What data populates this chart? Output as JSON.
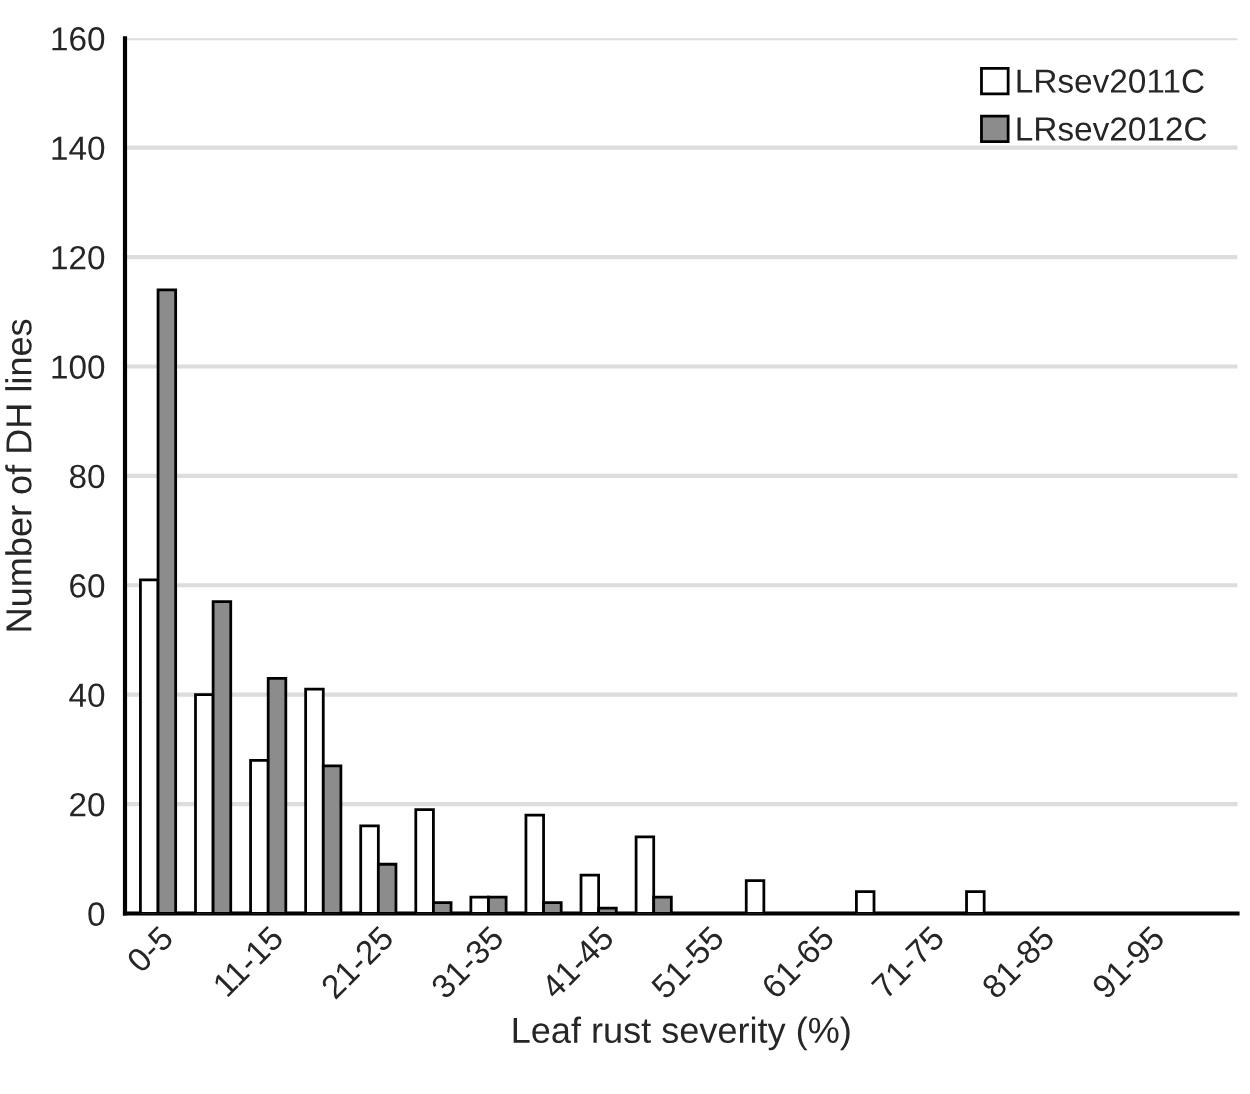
{
  "chart_data": {
    "type": "bar",
    "xlabel": "Leaf rust severity (%)",
    "ylabel": "Number of DH lines",
    "categories": [
      "0-5",
      null,
      "11-15",
      null,
      "21-25",
      null,
      "31-35",
      null,
      "41-45",
      null,
      "51-55",
      null,
      "61-65",
      null,
      "71-75",
      null,
      "81-85",
      null,
      "91-95",
      null
    ],
    "series": [
      {
        "name": "LRsev2011C",
        "color": "#ffffff",
        "values": [
          61,
          40,
          28,
          41,
          16,
          19,
          3,
          18,
          7,
          14,
          null,
          6,
          null,
          4,
          null,
          4,
          null,
          null,
          null,
          null
        ]
      },
      {
        "name": "LRsev2012C",
        "color": "#8c8c8c",
        "values": [
          114,
          57,
          43,
          27,
          9,
          2,
          3,
          2,
          1,
          3,
          null,
          null,
          null,
          null,
          null,
          null,
          null,
          null,
          null,
          null
        ]
      }
    ],
    "ylim": [
      0,
      160
    ],
    "yticks": [
      0,
      20,
      40,
      60,
      80,
      100,
      120,
      140,
      160
    ],
    "grid": "y",
    "legend": "top right"
  }
}
